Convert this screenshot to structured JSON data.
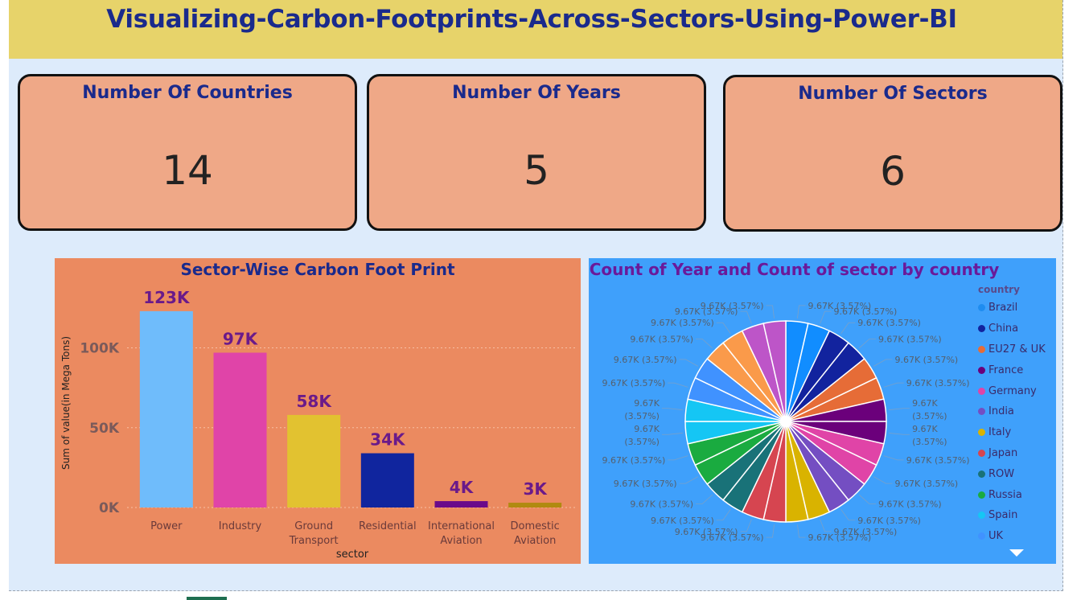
{
  "banner": {
    "title": "Visualizing-Carbon-Footprints-Across-Sectors-Using-Power-BI"
  },
  "kpis": [
    {
      "title": "Number Of Countries",
      "value": "14"
    },
    {
      "title": "Number Of Years",
      "value": "5"
    },
    {
      "title": "Number Of Sectors",
      "value": "6"
    }
  ],
  "colors": {
    "banner": "#e7d36a",
    "canvas": "#ddebfb",
    "kpi_card": "#efa887",
    "bar_panel": "#eb8a60",
    "pie_panel": "#3fa0fb",
    "title_navy": "#1a2a8c",
    "label_purple": "#6a1a9a"
  },
  "chart_data": [
    {
      "type": "bar",
      "title": "Sector-Wise Carbon Foot Print",
      "xlabel": "sector",
      "ylabel": "Sum of value(in Mega Tons)",
      "categories": [
        "Power",
        "Industry",
        "Ground Transport",
        "Residential",
        "International Aviation",
        "Domestic Aviation"
      ],
      "category_lines": [
        [
          "Power"
        ],
        [
          "Industry"
        ],
        [
          "Ground",
          "Transport"
        ],
        [
          "Residential"
        ],
        [
          "International",
          "Aviation"
        ],
        [
          "Domestic",
          "Aviation"
        ]
      ],
      "values": [
        123000,
        97000,
        58000,
        34000,
        4000,
        3000
      ],
      "data_labels": [
        "123K",
        "97K",
        "58K",
        "34K",
        "4K",
        "3K"
      ],
      "bar_colors": [
        "#6fbcfb",
        "#e044a8",
        "#e2c230",
        "#10259e",
        "#6a0a8a",
        "#b08a10"
      ],
      "yticks": [
        0,
        50000,
        100000
      ],
      "ytick_labels": [
        "0K",
        "50K",
        "100K"
      ],
      "ylim": [
        0,
        130000
      ],
      "grid": true
    },
    {
      "type": "pie",
      "title": "Count of Year and Count of sector by country",
      "legend_title": "country",
      "legend_position": "right",
      "legend": [
        {
          "name": "Brazil",
          "color": "#1e8cf0"
        },
        {
          "name": "China",
          "color": "#12239e"
        },
        {
          "name": "EU27 & UK",
          "color": "#e66c37"
        },
        {
          "name": "France",
          "color": "#6b007b"
        },
        {
          "name": "Germany",
          "color": "#e044a7"
        },
        {
          "name": "India",
          "color": "#744ec2"
        },
        {
          "name": "Italy",
          "color": "#d9b300"
        },
        {
          "name": "Japan",
          "color": "#d64550"
        },
        {
          "name": "ROW",
          "color": "#197278"
        },
        {
          "name": "Russia",
          "color": "#1aab40"
        },
        {
          "name": "Spain",
          "color": "#15c6f4"
        },
        {
          "name": "UK",
          "color": "#4092ff"
        }
      ],
      "slices": [
        {
          "color": "#118dff",
          "value": 9670,
          "pct": 3.57
        },
        {
          "color": "#118dff",
          "value": 9670,
          "pct": 3.57
        },
        {
          "color": "#12239e",
          "value": 9670,
          "pct": 3.57
        },
        {
          "color": "#12239e",
          "value": 9670,
          "pct": 3.57
        },
        {
          "color": "#e66c37",
          "value": 9670,
          "pct": 3.57
        },
        {
          "color": "#e66c37",
          "value": 9670,
          "pct": 3.57
        },
        {
          "color": "#6b007b",
          "value": 9670,
          "pct": 3.57
        },
        {
          "color": "#6b007b",
          "value": 9670,
          "pct": 3.57
        },
        {
          "color": "#e044a7",
          "value": 9670,
          "pct": 3.57
        },
        {
          "color": "#e044a7",
          "value": 9670,
          "pct": 3.57
        },
        {
          "color": "#744ec2",
          "value": 9670,
          "pct": 3.57
        },
        {
          "color": "#744ec2",
          "value": 9670,
          "pct": 3.57
        },
        {
          "color": "#d9b300",
          "value": 9670,
          "pct": 3.57
        },
        {
          "color": "#d9b300",
          "value": 9670,
          "pct": 3.57
        },
        {
          "color": "#d64550",
          "value": 9670,
          "pct": 3.57
        },
        {
          "color": "#d64550",
          "value": 9670,
          "pct": 3.57
        },
        {
          "color": "#197278",
          "value": 9670,
          "pct": 3.57
        },
        {
          "color": "#197278",
          "value": 9670,
          "pct": 3.57
        },
        {
          "color": "#1aab40",
          "value": 9670,
          "pct": 3.57
        },
        {
          "color": "#1aab40",
          "value": 9670,
          "pct": 3.57
        },
        {
          "color": "#15c6f4",
          "value": 9670,
          "pct": 3.57
        },
        {
          "color": "#15c6f4",
          "value": 9670,
          "pct": 3.57
        },
        {
          "color": "#4092ff",
          "value": 9670,
          "pct": 3.57
        },
        {
          "color": "#4092ff",
          "value": 9670,
          "pct": 3.57
        },
        {
          "color": "#fa9a4a",
          "value": 9670,
          "pct": 3.57
        },
        {
          "color": "#fa9a4a",
          "value": 9670,
          "pct": 3.57
        },
        {
          "color": "#bd55c8",
          "value": 9670,
          "pct": 3.57
        },
        {
          "color": "#bd55c8",
          "value": 9670,
          "pct": 3.57
        }
      ],
      "slice_label": "9.67K (3.57%)",
      "slice_label_lines": [
        "9.67K",
        "(3.57%)"
      ]
    }
  ]
}
